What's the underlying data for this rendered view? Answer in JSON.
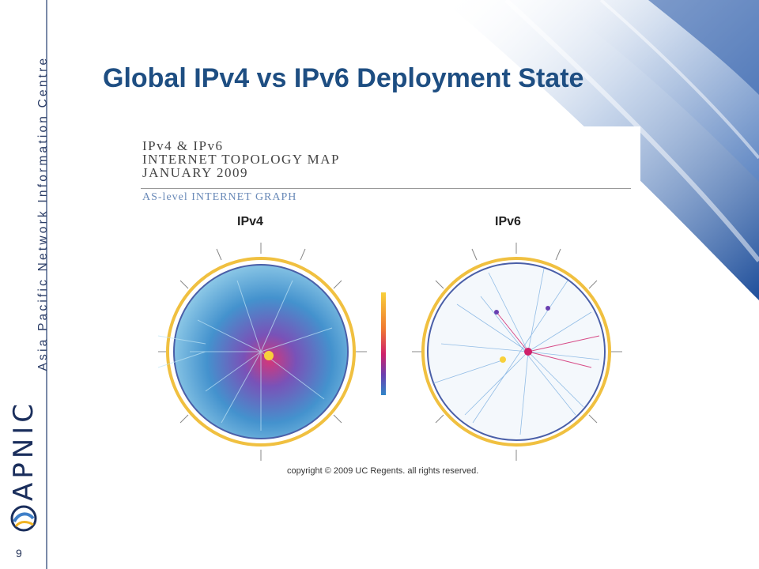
{
  "slide": {
    "title": "Global IPv4 vs IPv6 Deployment State",
    "page_number": "9",
    "brand": {
      "logo_text": "APNIC",
      "tagline": "Asia Pacific Network Information Centre",
      "colors": {
        "title": "#1e4e82",
        "navy": "#1a2e5c",
        "sidebar_line": "#7a8aa8"
      }
    }
  },
  "figure": {
    "header_lines": [
      "IPv4 & IPv6",
      "INTERNET TOPOLOGY MAP",
      "JANUARY 2009"
    ],
    "subheader": "AS-level INTERNET GRAPH",
    "left_label": "IPv4",
    "right_label": "IPv6",
    "copyright": "copyright © 2009 UC Regents. all rights reserved."
  }
}
